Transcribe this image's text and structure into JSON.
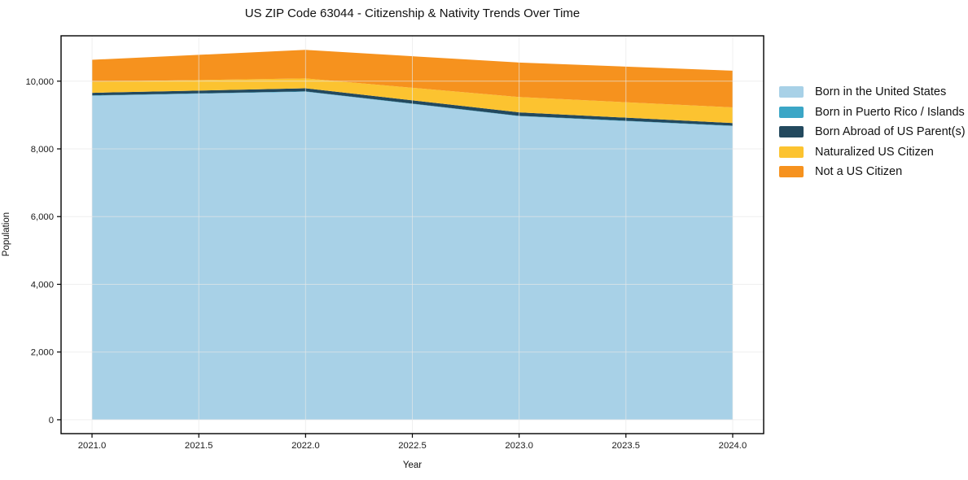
{
  "chart_data": {
    "type": "area",
    "stacked": true,
    "title": "US ZIP Code 63044 - Citizenship & Nativity Trends Over Time",
    "xlabel": "Year",
    "ylabel": "Population",
    "x": [
      2021,
      2022,
      2023,
      2024
    ],
    "series": [
      {
        "name": "Born in the United States",
        "color": "#a8d1e7",
        "values": [
          9570,
          9690,
          8965,
          8675
        ]
      },
      {
        "name": "Born in Puerto Rico / Islands",
        "color": "#3ba6c6",
        "values": [
          10,
          10,
          10,
          10
        ]
      },
      {
        "name": "Born Abroad of US Parent(s)",
        "color": "#23495e",
        "values": [
          75,
          90,
          105,
          80
        ]
      },
      {
        "name": "Naturalized US Citizen",
        "color": "#fcc330",
        "values": [
          330,
          290,
          450,
          460
        ]
      },
      {
        "name": "Not a US Citizen",
        "color": "#f6921e",
        "values": [
          645,
          845,
          1020,
          1085
        ]
      }
    ],
    "totals": [
      10630,
      10925,
      10550,
      10310
    ],
    "x_ticks": {
      "values": [
        2021,
        2021.5,
        2022,
        2022.5,
        2023,
        2023.5,
        2024
      ],
      "labels": [
        "2021.0",
        "2021.5",
        "2022.0",
        "2022.5",
        "2023.0",
        "2023.5",
        "2024.0"
      ]
    },
    "y_ticks": {
      "values": [
        0,
        2000,
        4000,
        6000,
        8000,
        10000
      ],
      "labels": [
        "0",
        "2,000",
        "4,000",
        "6,000",
        "8,000",
        "10,000"
      ]
    },
    "xlim": [
      2020.855,
      2024.145
    ],
    "ylim": [
      -410,
      11340
    ],
    "grid": true,
    "legend_position": "outside-right",
    "colors": {
      "spine": "#000000",
      "tick_label": "#191919",
      "gridline": "#e8e8e8",
      "background": "#ffffff"
    }
  }
}
